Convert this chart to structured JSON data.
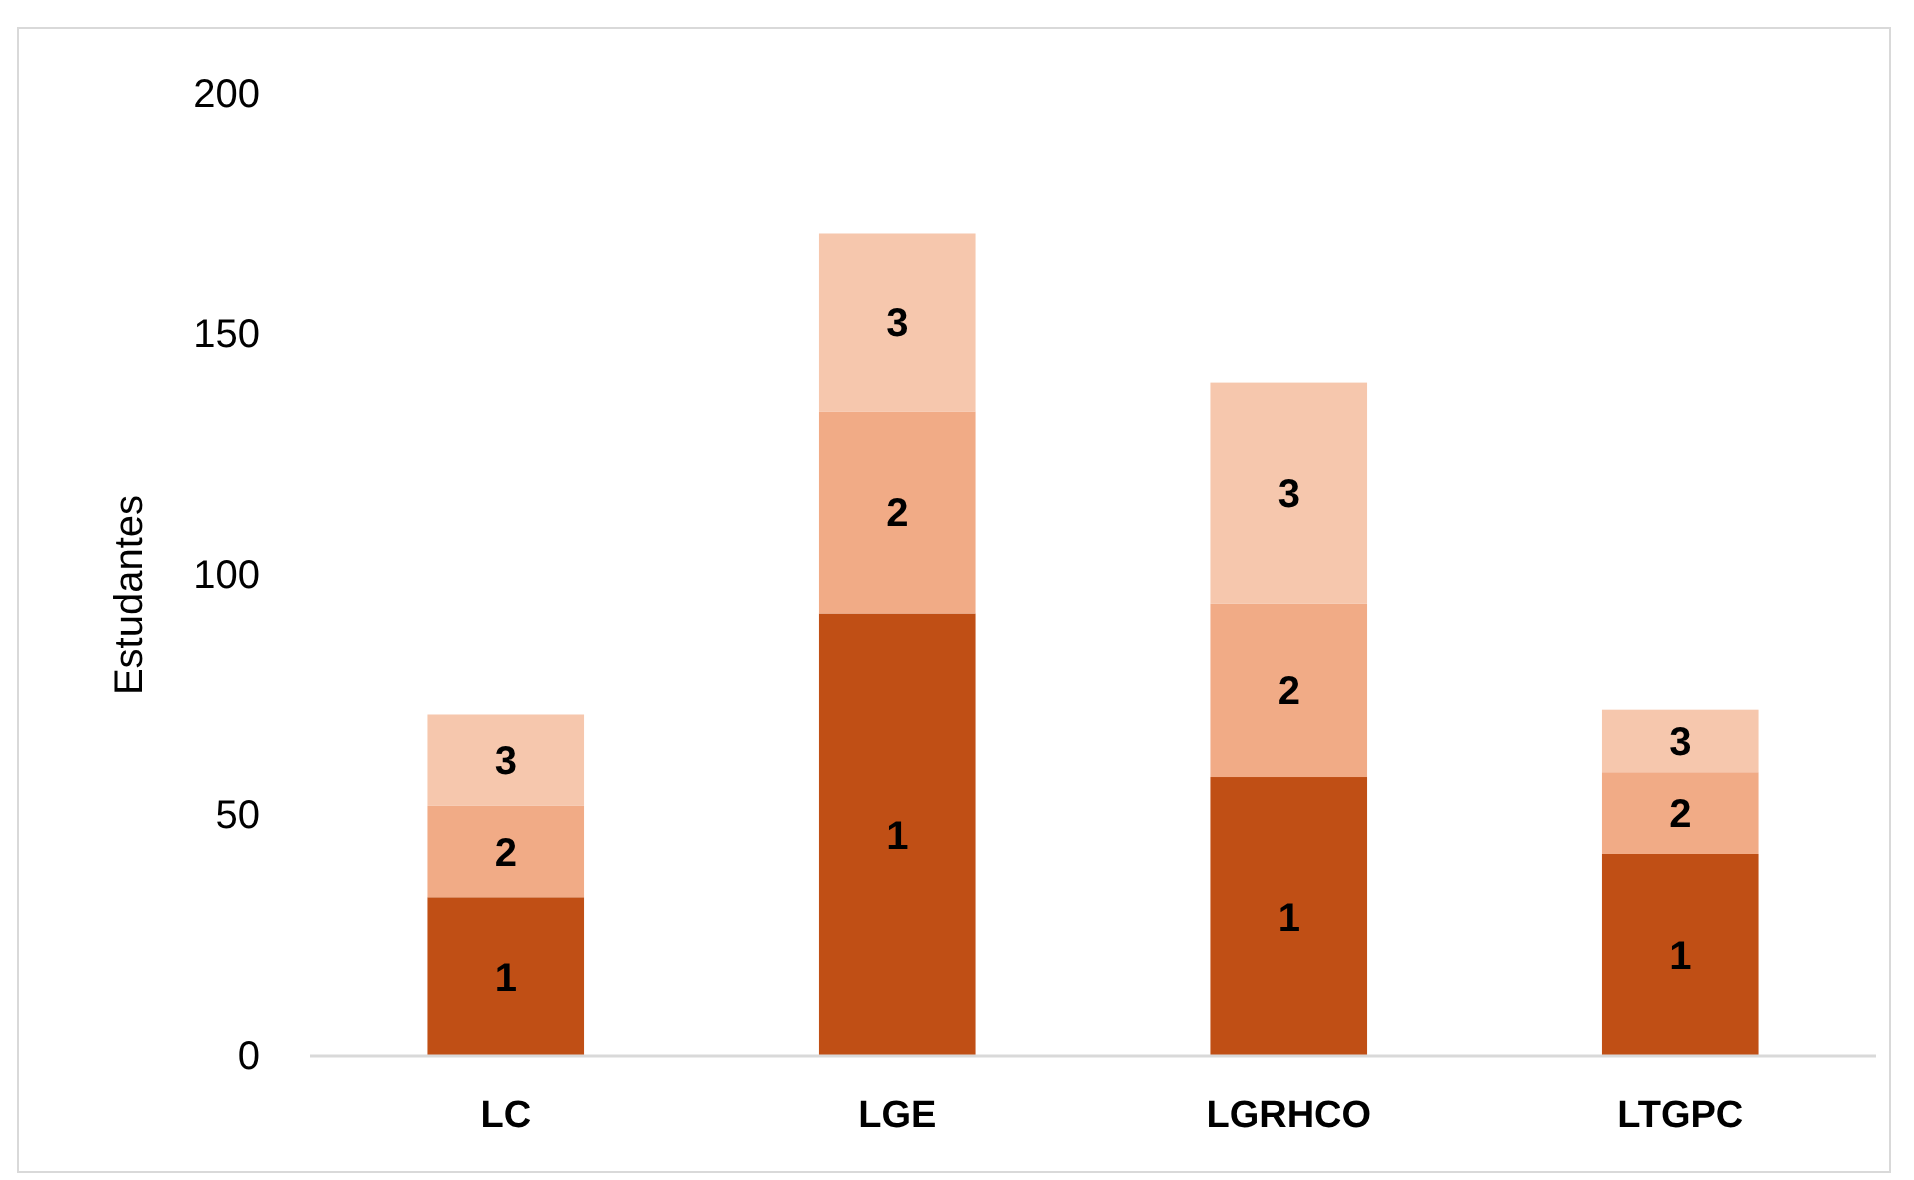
{
  "chart_data": {
    "type": "bar",
    "stacked": true,
    "ylabel": "Estudantes",
    "categories": [
      "LC",
      "LGE",
      "LGRHCO",
      "LTGPC"
    ],
    "series": [
      {
        "name": "1",
        "color": "#c04f15",
        "values": [
          33,
          92,
          58,
          42
        ]
      },
      {
        "name": "2",
        "color": "#f1ab86",
        "values": [
          19,
          42,
          36,
          17
        ]
      },
      {
        "name": "3",
        "color": "#f6c7ad",
        "values": [
          19,
          37,
          46,
          13
        ]
      }
    ],
    "ylim": [
      0,
      200
    ],
    "yticks": [
      0,
      50,
      100,
      150,
      200
    ],
    "grid": false
  }
}
